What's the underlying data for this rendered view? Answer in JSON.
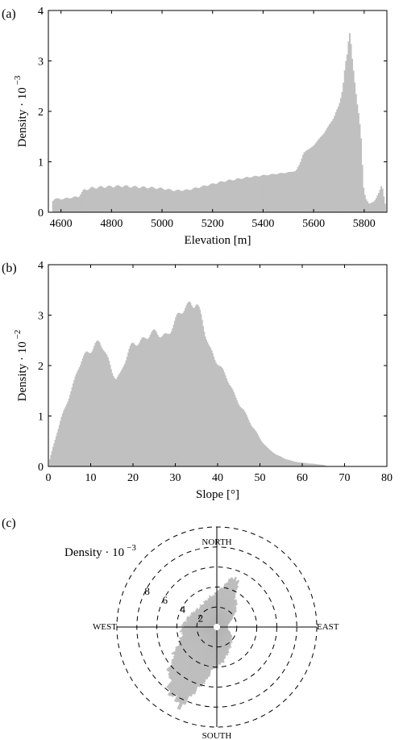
{
  "chart_data": [
    {
      "type": "bar",
      "panel_label": "(a)",
      "xlabel": "Elevation [m]",
      "ylabel": "Density · 10",
      "ylabel_exponent": "−3",
      "xlim": [
        4550,
        5890
      ],
      "ylim": [
        0,
        4
      ],
      "xticks": [
        4600,
        4800,
        5000,
        5200,
        5400,
        5600,
        5800
      ],
      "yticks": [
        0,
        1,
        2,
        3,
        4
      ],
      "bar_color": "#c0c0c0",
      "bin_width": 5,
      "profile": [
        [
          4565,
          0.22
        ],
        [
          4575,
          0.27
        ],
        [
          4600,
          0.26
        ],
        [
          4640,
          0.29
        ],
        [
          4670,
          0.31
        ],
        [
          4690,
          0.44
        ],
        [
          4720,
          0.48
        ],
        [
          4760,
          0.5
        ],
        [
          4800,
          0.51
        ],
        [
          4840,
          0.52
        ],
        [
          4900,
          0.5
        ],
        [
          4950,
          0.49
        ],
        [
          5000,
          0.47
        ],
        [
          5050,
          0.43
        ],
        [
          5100,
          0.44
        ],
        [
          5150,
          0.5
        ],
        [
          5200,
          0.56
        ],
        [
          5250,
          0.62
        ],
        [
          5300,
          0.66
        ],
        [
          5350,
          0.7
        ],
        [
          5400,
          0.73
        ],
        [
          5450,
          0.76
        ],
        [
          5500,
          0.79
        ],
        [
          5530,
          0.82
        ],
        [
          5545,
          0.96
        ],
        [
          5560,
          1.18
        ],
        [
          5580,
          1.25
        ],
        [
          5600,
          1.32
        ],
        [
          5620,
          1.45
        ],
        [
          5640,
          1.56
        ],
        [
          5660,
          1.72
        ],
        [
          5680,
          1.88
        ],
        [
          5700,
          2.12
        ],
        [
          5715,
          2.45
        ],
        [
          5725,
          2.9
        ],
        [
          5735,
          3.2
        ],
        [
          5740,
          3.62
        ],
        [
          5745,
          3.55
        ],
        [
          5750,
          3.15
        ],
        [
          5760,
          2.65
        ],
        [
          5770,
          2.25
        ],
        [
          5780,
          1.9
        ],
        [
          5790,
          1.3
        ],
        [
          5795,
          0.55
        ],
        [
          5805,
          0.28
        ],
        [
          5820,
          0.16
        ],
        [
          5840,
          0.22
        ],
        [
          5860,
          0.4
        ],
        [
          5870,
          0.55
        ],
        [
          5878,
          0.3
        ],
        [
          5885,
          0.1
        ]
      ]
    },
    {
      "type": "bar",
      "panel_label": "(b)",
      "xlabel": "Slope [°]",
      "ylabel": "Density · 10",
      "ylabel_exponent": "−2",
      "xlim": [
        0,
        80
      ],
      "ylim": [
        0,
        4
      ],
      "xticks": [
        0,
        10,
        20,
        30,
        40,
        50,
        60,
        70,
        80
      ],
      "yticks": [
        0,
        1,
        2,
        3,
        4
      ],
      "bar_color": "#c0c0c0",
      "bin_width": 0.25,
      "profile": [
        [
          0.2,
          0.1
        ],
        [
          1.0,
          0.35
        ],
        [
          2.0,
          0.65
        ],
        [
          3.0,
          0.95
        ],
        [
          4.0,
          1.2
        ],
        [
          5.0,
          1.45
        ],
        [
          6.0,
          1.65
        ],
        [
          7.0,
          1.9
        ],
        [
          8.0,
          2.1
        ],
        [
          9.0,
          2.25
        ],
        [
          10.0,
          2.35
        ],
        [
          11.0,
          2.45
        ],
        [
          12.0,
          2.45
        ],
        [
          13.0,
          2.3
        ],
        [
          14.0,
          2.1
        ],
        [
          15.0,
          1.9
        ],
        [
          16.0,
          1.78
        ],
        [
          17.0,
          1.85
        ],
        [
          18.0,
          2.05
        ],
        [
          19.0,
          2.25
        ],
        [
          20.0,
          2.4
        ],
        [
          22.0,
          2.55
        ],
        [
          24.0,
          2.6
        ],
        [
          26.0,
          2.6
        ],
        [
          28.0,
          2.65
        ],
        [
          30.0,
          2.85
        ],
        [
          32.0,
          3.1
        ],
        [
          33.5,
          3.3
        ],
        [
          35.0,
          3.25
        ],
        [
          36.0,
          2.95
        ],
        [
          37.0,
          2.6
        ],
        [
          38.0,
          2.35
        ],
        [
          40.0,
          2.1
        ],
        [
          42.0,
          1.75
        ],
        [
          44.0,
          1.4
        ],
        [
          46.0,
          1.15
        ],
        [
          48.0,
          0.8
        ],
        [
          50.0,
          0.55
        ],
        [
          52.0,
          0.35
        ],
        [
          54.0,
          0.22
        ],
        [
          56.0,
          0.15
        ],
        [
          58.0,
          0.1
        ],
        [
          60.0,
          0.07
        ],
        [
          63.0,
          0.05
        ],
        [
          65.0,
          0.03
        ],
        [
          66.0,
          0.0
        ]
      ]
    },
    {
      "type": "polar-bar",
      "panel_label": "(c)",
      "radial_label": "Density · 10",
      "radial_label_exponent": "−3",
      "directions": {
        "north": "NORTH",
        "south": "SOUTH",
        "east": "EAST",
        "west": "WEST"
      },
      "radial_ticks": [
        2,
        4,
        6,
        8
      ],
      "r_max": 10,
      "bin_width_deg": 2,
      "bar_color": "#c0c0c0",
      "profile": [
        [
          0,
          3.4
        ],
        [
          10,
          4.2
        ],
        [
          20,
          5.4
        ],
        [
          25,
          5.0
        ],
        [
          30,
          3.6
        ],
        [
          45,
          2.8
        ],
        [
          60,
          1.8
        ],
        [
          75,
          1.2
        ],
        [
          90,
          1.0
        ],
        [
          105,
          1.2
        ],
        [
          120,
          1.7
        ],
        [
          135,
          2.1
        ],
        [
          150,
          2.5
        ],
        [
          165,
          3.2
        ],
        [
          175,
          3.8
        ],
        [
          185,
          4.2
        ],
        [
          195,
          6.0
        ],
        [
          205,
          8.7
        ],
        [
          215,
          8.1
        ],
        [
          225,
          6.8
        ],
        [
          235,
          5.4
        ],
        [
          245,
          4.3
        ],
        [
          255,
          3.6
        ],
        [
          270,
          3.5
        ],
        [
          285,
          3.1
        ],
        [
          300,
          2.8
        ],
        [
          315,
          2.6
        ],
        [
          330,
          2.7
        ],
        [
          345,
          3.0
        ],
        [
          360,
          3.4
        ]
      ]
    }
  ]
}
